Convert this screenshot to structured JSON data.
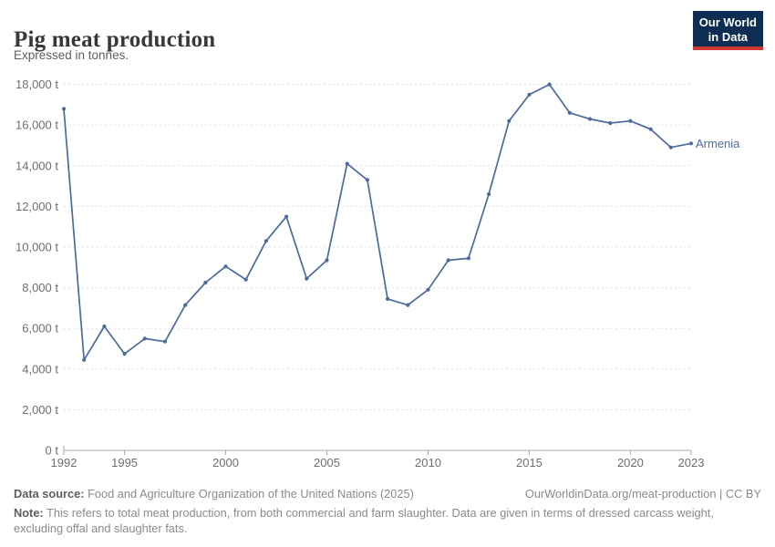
{
  "header": {
    "title": "Pig meat production",
    "subtitle": "Expressed in tonnes.",
    "logo_line1": "Our World",
    "logo_line2": "in Data"
  },
  "chart_data": {
    "type": "line",
    "title": "Pig meat production",
    "subtitle": "Expressed in tonnes.",
    "entity": "Armenia",
    "x": [
      1992,
      1993,
      1994,
      1995,
      1996,
      1997,
      1998,
      1999,
      2000,
      2001,
      2002,
      2003,
      2004,
      2005,
      2006,
      2007,
      2008,
      2009,
      2010,
      2011,
      2012,
      2013,
      2014,
      2015,
      2016,
      2017,
      2018,
      2019,
      2020,
      2021,
      2022,
      2023
    ],
    "series": [
      {
        "name": "Armenia",
        "color": "#4C6A9C",
        "values": [
          16800,
          4450,
          6100,
          4750,
          5500,
          5350,
          7150,
          8250,
          9050,
          8400,
          10300,
          11500,
          8450,
          9350,
          14100,
          13300,
          7450,
          7150,
          7900,
          9350,
          9450,
          12600,
          16200,
          17500,
          18000,
          16600,
          16300,
          16100,
          16200,
          15800,
          14900,
          15100
        ]
      }
    ],
    "x_ticks": [
      1992,
      1995,
      2000,
      2005,
      2010,
      2015,
      2020,
      2023
    ],
    "y_ticks": [
      0,
      2000,
      4000,
      6000,
      8000,
      10000,
      12000,
      14000,
      16000,
      18000
    ],
    "y_tick_suffix": " t",
    "ylim": [
      0,
      18000
    ],
    "xlim": [
      1992,
      2023
    ],
    "grid": "horizontal-dashed",
    "legend_position": "end-of-line-label",
    "xlabel": "",
    "ylabel": ""
  },
  "footer": {
    "datasource_label": "Data source:",
    "datasource_text": " Food and Agriculture Organization of the United Nations (2025)",
    "link_text": "OurWorldinData.org/meat-production | CC BY",
    "note_label": "Note:",
    "note_text": " This refers to total meat production, from both commercial and farm slaughter. Data are given in terms of dressed carcass weight, excluding offal and slaughter fats."
  },
  "colors": {
    "line": "#4C6A9C",
    "grid": "#e0e0e0",
    "axis": "#a9a9a9",
    "tick_text": "#6e6e6e",
    "logo_bg": "#0d2d52",
    "logo_red": "#cf3b32"
  }
}
